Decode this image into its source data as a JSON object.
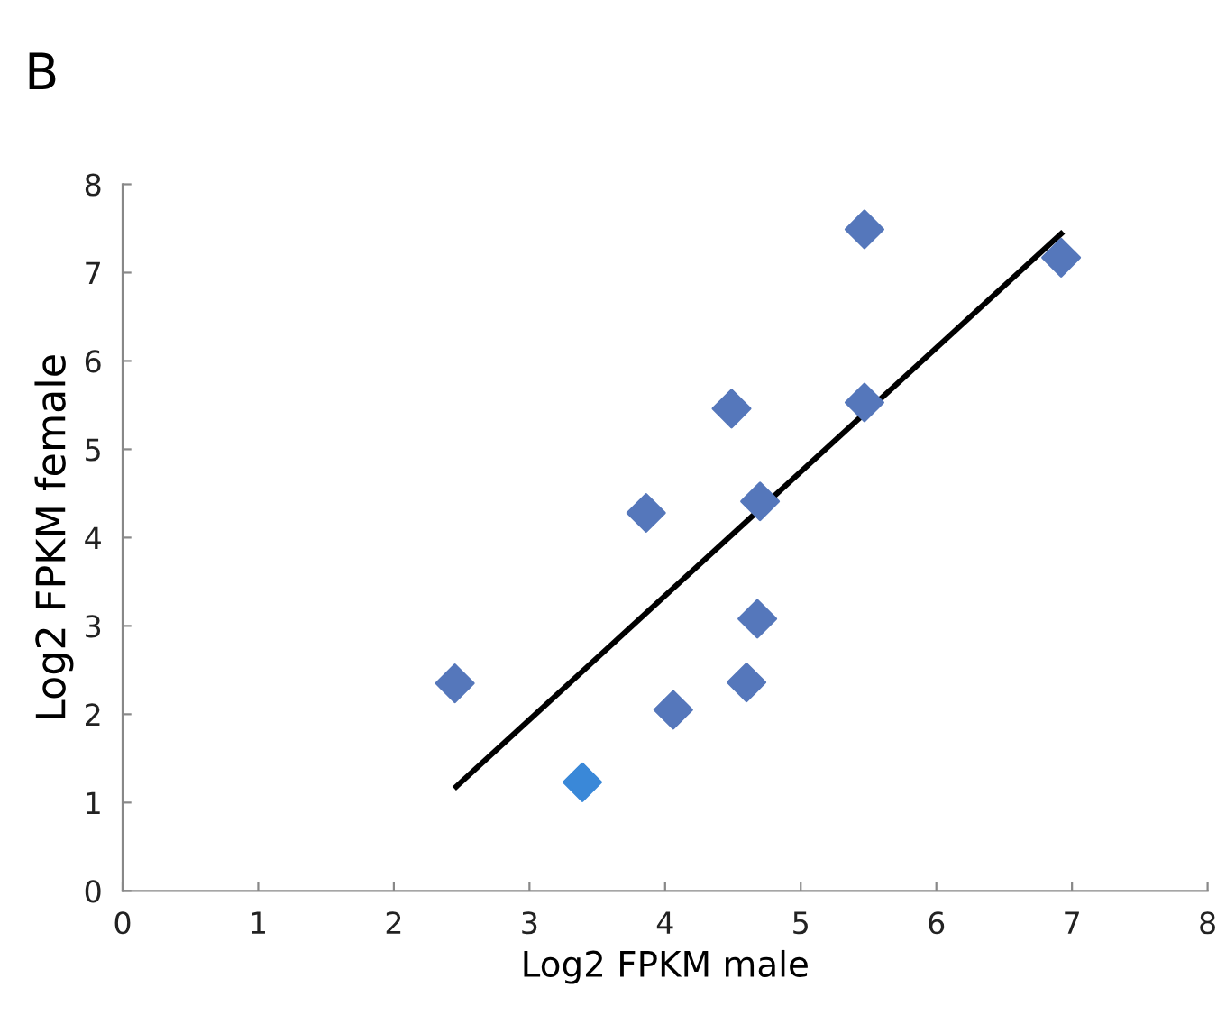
{
  "chart_data": {
    "type": "scatter",
    "title": "B",
    "xlabel": "Log2 FPKM male",
    "ylabel": "Log2 FPKM female",
    "xlim": [
      0,
      8
    ],
    "ylim": [
      0,
      8
    ],
    "xticks": [
      0,
      1,
      2,
      3,
      4,
      5,
      6,
      7,
      8
    ],
    "yticks": [
      0,
      1,
      2,
      3,
      4,
      5,
      6,
      7,
      8
    ],
    "grid": false,
    "legend": false,
    "series": [
      {
        "marker": "diamond",
        "colors": [
          "#5577bb",
          "#3a88d8",
          "#5577bb",
          "#5577bb",
          "#5577bb",
          "#5577bb",
          "#5577bb",
          "#5577bb",
          "#5577bb",
          "#5577bb",
          "#5577bb"
        ],
        "x": [
          2.45,
          3.39,
          3.86,
          4.06,
          4.49,
          4.6,
          4.68,
          4.7,
          5.47,
          5.47,
          6.92
        ],
        "values": [
          2.35,
          1.23,
          4.28,
          2.05,
          5.46,
          2.36,
          3.08,
          4.41,
          7.49,
          5.53,
          7.17
        ]
      },
      {
        "type": "line",
        "marker": "none",
        "line_style": "solid",
        "color": "#000000",
        "x": [
          2.46,
          6.92
        ],
        "values": [
          1.18,
          7.44
        ]
      }
    ]
  }
}
